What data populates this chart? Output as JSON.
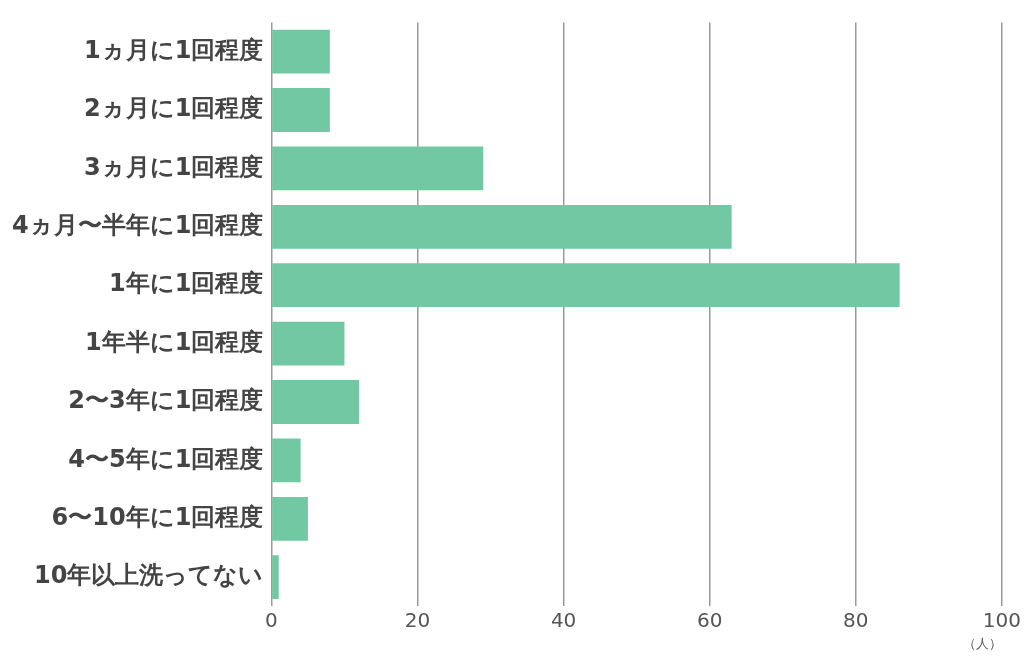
{
  "chart_data": {
    "type": "bar",
    "orientation": "horizontal",
    "categories": [
      "1ヵ月に1回程度",
      "2ヵ月に1回程度",
      "3ヵ月に1回程度",
      "4ヵ月〜半年に1回程度",
      "1年に1回程度",
      "1年半に1回程度",
      "2〜3年に1回程度",
      "4〜5年に1回程度",
      "6〜10年に1回程度",
      "10年以上洗ってない"
    ],
    "values": [
      8,
      8,
      29,
      63,
      86,
      10,
      12,
      4,
      5,
      1
    ],
    "color": "#72c8a3",
    "xlim": [
      0,
      100
    ],
    "xticks": [
      0,
      20,
      40,
      60,
      80,
      100
    ],
    "xlabel": "（人）",
    "grid": "x"
  }
}
